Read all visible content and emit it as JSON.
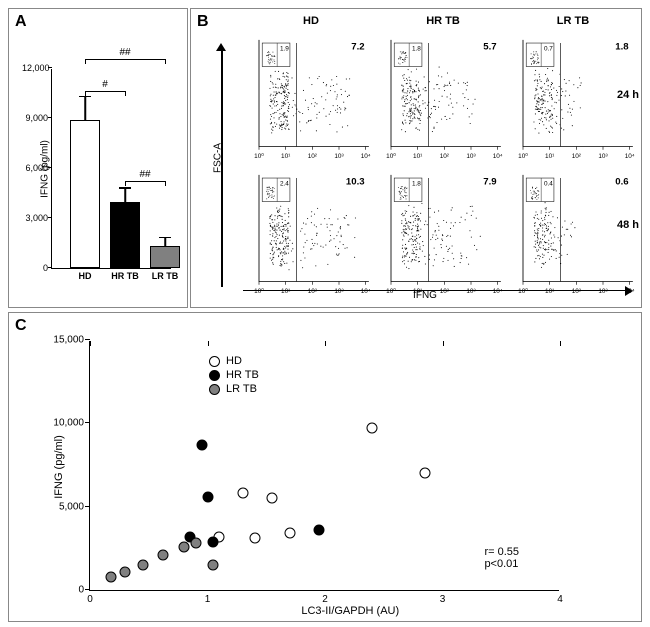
{
  "panels": {
    "A": "A",
    "B": "B",
    "C": "C"
  },
  "groups": {
    "HD": {
      "label": "HD",
      "color": "#ffffff"
    },
    "HRTB": {
      "label": "HR TB",
      "color": "#000000"
    },
    "LRTB": {
      "label": "LR TB",
      "color": "#808080"
    }
  },
  "A": {
    "type": "bar",
    "ylabel": "IFNG (pg/ml)",
    "ylim": [
      0,
      12000
    ],
    "yticks": [
      0,
      3000,
      6000,
      9000,
      12000
    ],
    "ytick_labels": [
      "0",
      "3,000",
      "6,000",
      "9,000",
      "12,000"
    ],
    "categories": [
      "HD",
      "HR TB",
      "LR TB"
    ],
    "values": [
      8900,
      3950,
      1350
    ],
    "err": [
      1500,
      950,
      600
    ],
    "bar_colors": [
      "#ffffff",
      "#000000",
      "#808080"
    ],
    "bar_border": "#000000",
    "sig": [
      {
        "i": 0,
        "j": 1,
        "text": "#",
        "y": 10700
      },
      {
        "i": 1,
        "j": 2,
        "text": "##",
        "y": 5300
      },
      {
        "i": 0,
        "j": 2,
        "text": "##",
        "y": 12600
      }
    ],
    "label_fontsize": 9
  },
  "B": {
    "type": "flow-cytometry",
    "col_headers": [
      "HD",
      "HR TB",
      "LR TB"
    ],
    "row_labels": [
      "24 h",
      "48 h"
    ],
    "y_axis": "FSC-A",
    "x_axis": "IFNG",
    "x_ticks": [
      "10⁰",
      "10¹",
      "10²",
      "10³",
      "10⁴"
    ],
    "y_ticks": [
      "0",
      "1023"
    ],
    "axis_color": "#000000",
    "dot_color": "#000000",
    "cells": [
      [
        {
          "pct_main": "7.2",
          "pct_inset": "1.9",
          "spread": 0.95,
          "density": 1.0
        },
        {
          "pct_main": "5.7",
          "pct_inset": "1.8",
          "spread": 0.8,
          "density": 0.9
        },
        {
          "pct_main": "1.8",
          "pct_inset": "0.7",
          "spread": 0.45,
          "density": 0.7
        }
      ],
      [
        {
          "pct_main": "10.3",
          "pct_inset": "2.4",
          "spread": 1.0,
          "density": 1.0
        },
        {
          "pct_main": "7.9",
          "pct_inset": "1.8",
          "spread": 0.85,
          "density": 0.9
        },
        {
          "pct_main": "0.6",
          "pct_inset": "0.4",
          "spread": 0.35,
          "density": 0.6
        }
      ]
    ]
  },
  "C": {
    "type": "scatter",
    "ylabel": "IFNG (pg/ml)",
    "xlabel": "LC3-II/GAPDH (AU)",
    "xlim": [
      0,
      4
    ],
    "ylim": [
      0,
      15000
    ],
    "xticks": [
      0,
      1,
      2,
      3,
      4
    ],
    "yticks": [
      0,
      5000,
      10000,
      15000
    ],
    "ytick_labels": [
      "0",
      "5,000",
      "10,000",
      "15,000"
    ],
    "stats_text": [
      "r= 0.55",
      "p<0.01"
    ],
    "legend": [
      "HD",
      "HR TB",
      "LR TB"
    ],
    "points": [
      {
        "g": "HD",
        "x": 1.3,
        "y": 5800
      },
      {
        "g": "HD",
        "x": 1.55,
        "y": 5500
      },
      {
        "g": "HD",
        "x": 1.1,
        "y": 3200
      },
      {
        "g": "HD",
        "x": 1.7,
        "y": 3400
      },
      {
        "g": "HD",
        "x": 1.4,
        "y": 3100
      },
      {
        "g": "HD",
        "x": 2.4,
        "y": 9700
      },
      {
        "g": "HD",
        "x": 2.85,
        "y": 7000
      },
      {
        "g": "HRTB",
        "x": 0.95,
        "y": 8700
      },
      {
        "g": "HRTB",
        "x": 1.0,
        "y": 5600
      },
      {
        "g": "HRTB",
        "x": 0.85,
        "y": 3200
      },
      {
        "g": "HRTB",
        "x": 1.05,
        "y": 2900
      },
      {
        "g": "HRTB",
        "x": 1.95,
        "y": 3600
      },
      {
        "g": "LRTB",
        "x": 0.18,
        "y": 800
      },
      {
        "g": "LRTB",
        "x": 0.3,
        "y": 1100
      },
      {
        "g": "LRTB",
        "x": 0.45,
        "y": 1500
      },
      {
        "g": "LRTB",
        "x": 0.62,
        "y": 2100
      },
      {
        "g": "LRTB",
        "x": 0.9,
        "y": 2800
      },
      {
        "g": "LRTB",
        "x": 0.8,
        "y": 2600
      },
      {
        "g": "LRTB",
        "x": 1.05,
        "y": 1500
      }
    ]
  }
}
